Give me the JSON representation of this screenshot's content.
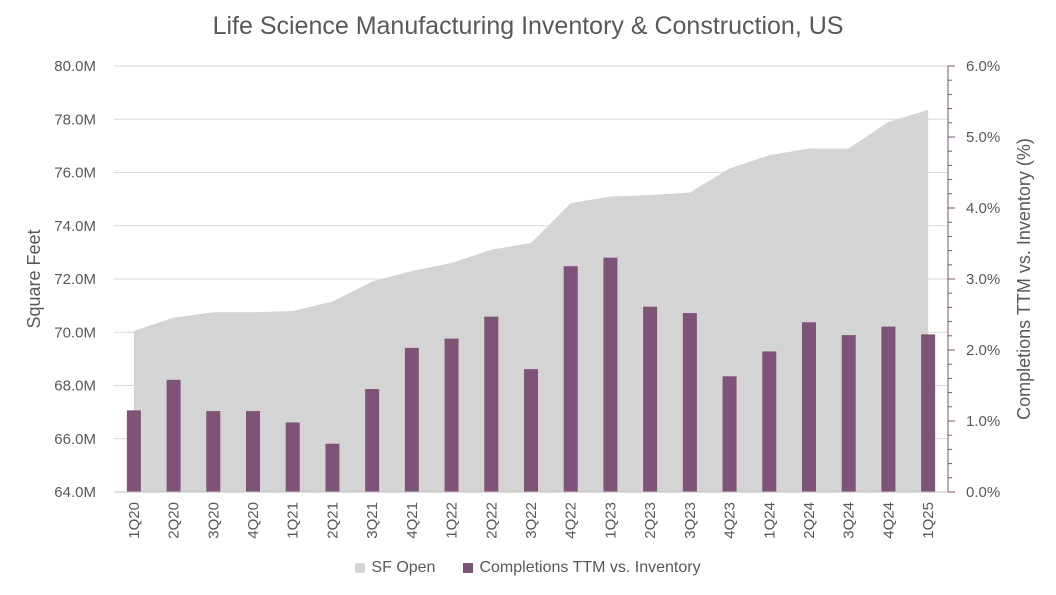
{
  "chart_data": {
    "type": "bar",
    "title": "Life Science Manufacturing Inventory & Construction, US",
    "categories": [
      "1Q20",
      "2Q20",
      "3Q20",
      "4Q20",
      "1Q21",
      "2Q21",
      "3Q21",
      "4Q21",
      "1Q22",
      "2Q22",
      "3Q22",
      "4Q22",
      "1Q23",
      "2Q23",
      "3Q23",
      "4Q23",
      "1Q24",
      "2Q24",
      "3Q24",
      "4Q24",
      "1Q25"
    ],
    "ylabel": "Square Feet",
    "y2label": "Completions TTM vs. Inventory (%)",
    "ylim": [
      64000000,
      80000000
    ],
    "y2lim": [
      0,
      6
    ],
    "yticks": [
      "64.0M",
      "66.0M",
      "68.0M",
      "70.0M",
      "72.0M",
      "74.0M",
      "76.0M",
      "78.0M",
      "80.0M"
    ],
    "y2ticks": [
      "0.0%",
      "1.0%",
      "2.0%",
      "3.0%",
      "4.0%",
      "5.0%",
      "6.0%"
    ],
    "grid": true,
    "legend_position": "bottom",
    "series": [
      {
        "name": "SF Open",
        "type": "area",
        "axis": "left",
        "color": "#d4d4d4",
        "values": [
          70050000,
          70550000,
          70750000,
          70750000,
          70800000,
          71150000,
          71900000,
          72300000,
          72600000,
          73100000,
          73350000,
          74850000,
          75100000,
          75150000,
          75250000,
          76150000,
          76650000,
          76900000,
          76900000,
          77900000,
          78350000
        ]
      },
      {
        "name": "Completions TTM vs. Inventory",
        "type": "bar",
        "axis": "right",
        "color": "#7f5277",
        "values": [
          1.15,
          1.58,
          1.14,
          1.14,
          0.98,
          0.68,
          1.45,
          2.03,
          2.16,
          2.47,
          1.73,
          3.18,
          3.3,
          2.61,
          2.52,
          1.63,
          1.98,
          2.39,
          2.21,
          2.33,
          2.22
        ]
      }
    ]
  }
}
